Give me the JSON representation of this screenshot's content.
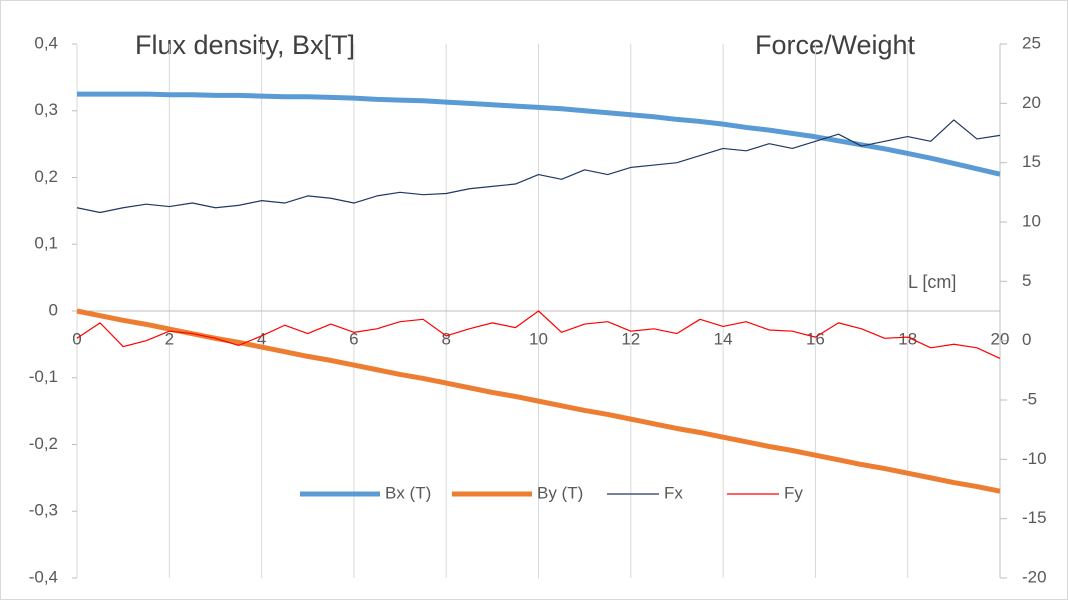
{
  "chart_data": {
    "type": "line",
    "annotations": [
      "Flux density, Bx[T]",
      "Force/Weight"
    ],
    "xlabel": "L [cm]",
    "x": [
      0,
      0.5,
      1,
      1.5,
      2,
      2.5,
      3,
      3.5,
      4,
      4.5,
      5,
      5.5,
      6,
      6.5,
      7,
      7.5,
      8,
      8.5,
      9,
      9.5,
      10,
      10.5,
      11,
      11.5,
      12,
      12.5,
      13,
      13.5,
      14,
      14.5,
      15,
      15.5,
      16,
      16.5,
      17,
      17.5,
      18,
      18.5,
      19,
      19.5,
      20
    ],
    "series": [
      {
        "name": "Bx (T)",
        "color": "#5b9bd5",
        "axis": "y",
        "values": [
          0.325,
          0.325,
          0.325,
          0.325,
          0.324,
          0.324,
          0.323,
          0.323,
          0.322,
          0.321,
          0.321,
          0.32,
          0.319,
          0.317,
          0.316,
          0.315,
          0.313,
          0.311,
          0.309,
          0.307,
          0.305,
          0.303,
          0.3,
          0.297,
          0.294,
          0.291,
          0.287,
          0.284,
          0.28,
          0.275,
          0.271,
          0.266,
          0.261,
          0.255,
          0.249,
          0.243,
          0.236,
          0.229,
          0.221,
          0.213,
          0.205
        ]
      },
      {
        "name": "By (T)",
        "color": "#ed7d31",
        "axis": "y",
        "values": [
          0,
          -0.007,
          -0.014,
          -0.02,
          -0.027,
          -0.034,
          -0.041,
          -0.047,
          -0.054,
          -0.061,
          -0.068,
          -0.074,
          -0.081,
          -0.088,
          -0.095,
          -0.101,
          -0.108,
          -0.115,
          -0.122,
          -0.128,
          -0.135,
          -0.142,
          -0.149,
          -0.155,
          -0.162,
          -0.169,
          -0.176,
          -0.182,
          -0.189,
          -0.196,
          -0.203,
          -0.209,
          -0.216,
          -0.223,
          -0.23,
          -0.236,
          -0.243,
          -0.25,
          -0.257,
          -0.263,
          -0.27
        ]
      },
      {
        "name": "Fx",
        "color": "#203864",
        "axis": "y2",
        "values": [
          11.2,
          10.8,
          11.2,
          11.5,
          11.3,
          11.6,
          11.2,
          11.4,
          11.8,
          11.6,
          12.2,
          12.0,
          11.6,
          12.2,
          12.5,
          12.3,
          12.4,
          12.8,
          13.0,
          13.2,
          14.0,
          13.6,
          14.4,
          14.0,
          14.6,
          14.8,
          15.0,
          15.6,
          16.2,
          16.0,
          16.6,
          16.2,
          16.8,
          17.4,
          16.4,
          16.8,
          17.2,
          16.8,
          18.6,
          17.0,
          17.3
        ]
      },
      {
        "name": "Fy",
        "color": "#ff0000",
        "axis": "y2",
        "values": [
          0.2,
          1.5,
          -0.5,
          0.0,
          0.8,
          0.6,
          0.2,
          -0.4,
          0.4,
          1.3,
          0.6,
          1.4,
          0.7,
          1.0,
          1.6,
          1.8,
          0.4,
          1.0,
          1.5,
          1.1,
          2.5,
          0.7,
          1.4,
          1.6,
          0.8,
          1.0,
          0.6,
          1.8,
          1.2,
          1.6,
          0.9,
          0.8,
          0.3,
          1.5,
          1.0,
          0.2,
          0.3,
          -0.6,
          -0.3,
          -0.6,
          -1.5
        ]
      }
    ],
    "xlim": [
      0,
      20
    ],
    "xticks": [
      0,
      2,
      4,
      6,
      8,
      10,
      12,
      14,
      16,
      18,
      20
    ],
    "ylim": [
      -0.4,
      0.4
    ],
    "yticks": [
      {
        "value": -0.4,
        "label": "-0,4"
      },
      {
        "value": -0.3,
        "label": "-0,3"
      },
      {
        "value": -0.2,
        "label": "-0,2"
      },
      {
        "value": -0.1,
        "label": "-0,1"
      },
      0,
      {
        "value": 0.1,
        "label": "0,1"
      },
      {
        "value": 0.2,
        "label": "0,2"
      },
      {
        "value": 0.3,
        "label": "0,3"
      },
      {
        "value": 0.4,
        "label": "0,4"
      }
    ],
    "y2lim": [
      -20,
      25
    ],
    "y2ticks": [
      -20,
      -15,
      -10,
      -5,
      0,
      5,
      10,
      15,
      20,
      25
    ],
    "grid": "x",
    "legend": "bottom"
  }
}
